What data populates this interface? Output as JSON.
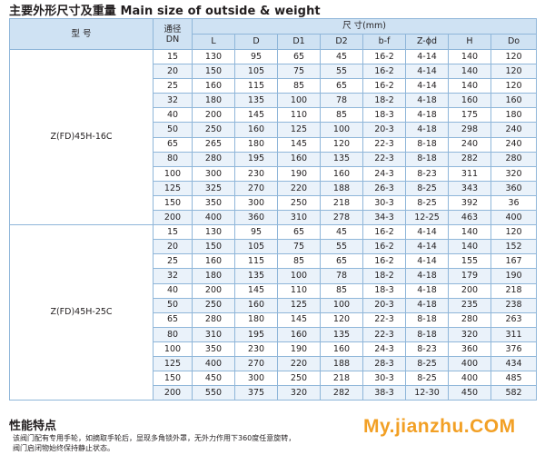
{
  "title": "主要外形尺寸及重量 Main size of outside & weight",
  "table": {
    "header": {
      "model_label": "型    号",
      "dn_label_line1": "通径",
      "dn_label_line2": "DN",
      "dims_group_label": "尺      寸(mm)",
      "columns": [
        "L",
        "D",
        "D1",
        "D2",
        "b-f",
        "Z-ϕd",
        "H",
        "Do"
      ]
    },
    "groups": [
      {
        "model": "Z(FD)45H-16C",
        "rows": [
          {
            "dn": "15",
            "values": [
              "130",
              "95",
              "65",
              "45",
              "16-2",
              "4-14",
              "140",
              "120"
            ]
          },
          {
            "dn": "20",
            "values": [
              "150",
              "105",
              "75",
              "55",
              "16-2",
              "4-14",
              "140",
              "120"
            ]
          },
          {
            "dn": "25",
            "values": [
              "160",
              "115",
              "85",
              "65",
              "16-2",
              "4-14",
              "140",
              "120"
            ]
          },
          {
            "dn": "32",
            "values": [
              "180",
              "135",
              "100",
              "78",
              "18-2",
              "4-18",
              "160",
              "160"
            ]
          },
          {
            "dn": "40",
            "values": [
              "200",
              "145",
              "110",
              "85",
              "18-3",
              "4-18",
              "175",
              "180"
            ]
          },
          {
            "dn": "50",
            "values": [
              "250",
              "160",
              "125",
              "100",
              "20-3",
              "4-18",
              "298",
              "240"
            ]
          },
          {
            "dn": "65",
            "values": [
              "265",
              "180",
              "145",
              "120",
              "22-3",
              "8-18",
              "240",
              "240"
            ]
          },
          {
            "dn": "80",
            "values": [
              "280",
              "195",
              "160",
              "135",
              "22-3",
              "8-18",
              "282",
              "280"
            ]
          },
          {
            "dn": "100",
            "values": [
              "300",
              "230",
              "190",
              "160",
              "24-3",
              "8-23",
              "311",
              "320"
            ]
          },
          {
            "dn": "125",
            "values": [
              "325",
              "270",
              "220",
              "188",
              "26-3",
              "8-25",
              "343",
              "360"
            ]
          },
          {
            "dn": "150",
            "values": [
              "350",
              "300",
              "250",
              "218",
              "30-3",
              "8-25",
              "392",
              "36"
            ]
          },
          {
            "dn": "200",
            "values": [
              "400",
              "360",
              "310",
              "278",
              "34-3",
              "12-25",
              "463",
              "400"
            ]
          }
        ]
      },
      {
        "model": "Z(FD)45H-25C",
        "rows": [
          {
            "dn": "15",
            "values": [
              "130",
              "95",
              "65",
              "45",
              "16-2",
              "4-14",
              "140",
              "120"
            ]
          },
          {
            "dn": "20",
            "values": [
              "150",
              "105",
              "75",
              "55",
              "16-2",
              "4-14",
              "140",
              "152"
            ]
          },
          {
            "dn": "25",
            "values": [
              "160",
              "115",
              "85",
              "65",
              "16-2",
              "4-14",
              "155",
              "167"
            ]
          },
          {
            "dn": "32",
            "values": [
              "180",
              "135",
              "100",
              "78",
              "18-2",
              "4-18",
              "179",
              "190"
            ]
          },
          {
            "dn": "40",
            "values": [
              "200",
              "145",
              "110",
              "85",
              "18-3",
              "4-18",
              "200",
              "218"
            ]
          },
          {
            "dn": "50",
            "values": [
              "250",
              "160",
              "125",
              "100",
              "20-3",
              "4-18",
              "235",
              "238"
            ]
          },
          {
            "dn": "65",
            "values": [
              "280",
              "180",
              "145",
              "120",
              "22-3",
              "8-18",
              "280",
              "263"
            ]
          },
          {
            "dn": "80",
            "values": [
              "310",
              "195",
              "160",
              "135",
              "22-3",
              "8-18",
              "320",
              "311"
            ]
          },
          {
            "dn": "100",
            "values": [
              "350",
              "230",
              "190",
              "160",
              "24-3",
              "8-23",
              "360",
              "376"
            ]
          },
          {
            "dn": "125",
            "values": [
              "400",
              "270",
              "220",
              "188",
              "28-3",
              "8-25",
              "400",
              "434"
            ]
          },
          {
            "dn": "150",
            "values": [
              "450",
              "300",
              "250",
              "218",
              "30-3",
              "8-25",
              "400",
              "485"
            ]
          },
          {
            "dn": "200",
            "values": [
              "550",
              "375",
              "320",
              "282",
              "38-3",
              "12-30",
              "450",
              "582"
            ]
          }
        ]
      }
    ]
  },
  "features": {
    "heading": "性能特点",
    "text_line1": "该阀门配有专用手轮，如摘取手轮后，显现多角锁外罩，无外力作用下360度任意旋转，",
    "text_line2": "阀门启闭物始终保持静止状态。"
  },
  "watermark": "My.jianzhu.COM"
}
